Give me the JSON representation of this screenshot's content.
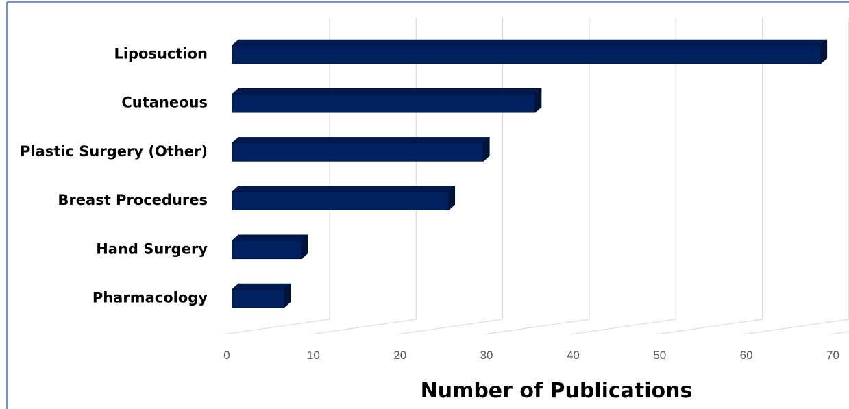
{
  "chart_data": {
    "type": "bar",
    "orientation": "horizontal",
    "categories": [
      "Liposuction",
      "Cutaneous",
      "Plastic Surgery (Other)",
      "Breast Procedures",
      "Hand Surgery",
      "Pharmacology"
    ],
    "values": [
      68,
      35,
      29,
      25,
      8,
      6
    ],
    "title": "",
    "xlabel": "Number of Publications",
    "ylabel": "",
    "xlim": [
      0,
      70
    ],
    "xticks": [
      "0",
      "10",
      "20",
      "30",
      "40",
      "50",
      "60",
      "70"
    ],
    "grid": true,
    "legend": "none",
    "bar_color": "#002060",
    "bar_top_color": "#001A4D",
    "bar_side_color": "#00143A",
    "frame_color": "#4472C4",
    "gridline_color": "#D9D9D9"
  }
}
